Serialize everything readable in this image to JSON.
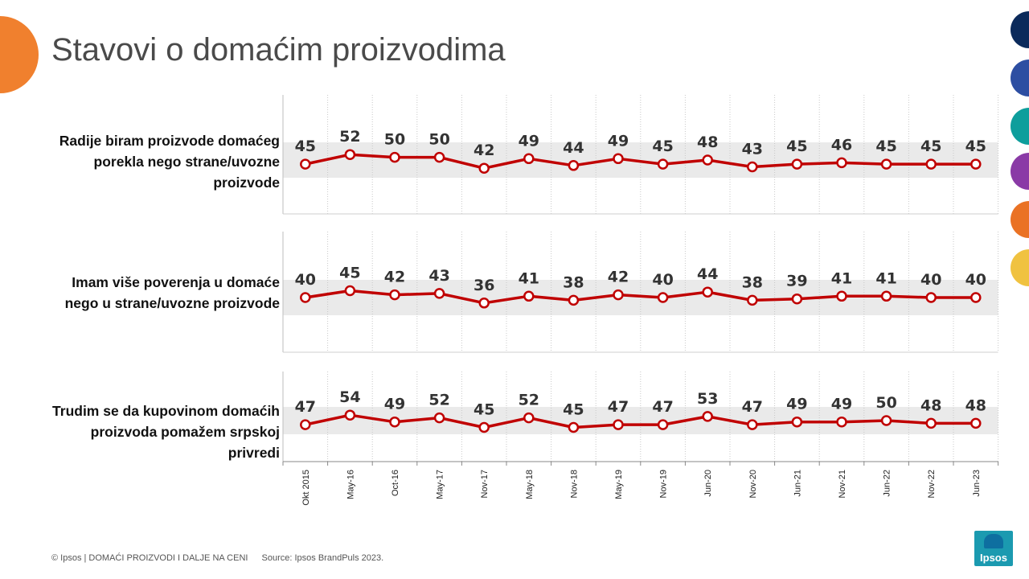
{
  "title": "Stavovi o domaćim proizvodima",
  "colors": {
    "line": "#c00000",
    "band": "#eaeaea",
    "deco_orange": "#f0802e",
    "side_dots": [
      "#0b2a5b",
      "#2d4ea2",
      "#0e9e9c",
      "#8a3aa6",
      "#ea7224",
      "#f0c240"
    ]
  },
  "chart_data": {
    "type": "line",
    "categories": [
      "Okt 2015",
      "May-16",
      "Oct-16",
      "May-17",
      "Nov-17",
      "May-18",
      "Nov-18",
      "May-19",
      "Nov-19",
      "Jun-20",
      "Nov-20",
      "Jun-21",
      "Nov-21",
      "Jun-22",
      "Nov-22",
      "Jun-23"
    ],
    "series": [
      {
        "name": "Radije biram proizvode domaćeg porekla nego strane/uvozne proizvode",
        "values": [
          45,
          52,
          50,
          50,
          42,
          49,
          44,
          49,
          45,
          48,
          43,
          45,
          46,
          45,
          45,
          45
        ]
      },
      {
        "name": "Imam više poverenja u domaće nego u strane/uvozne proizvode",
        "values": [
          40,
          45,
          42,
          43,
          36,
          41,
          38,
          42,
          40,
          44,
          38,
          39,
          41,
          41,
          40,
          40
        ]
      },
      {
        "name": "Trudim se da kupovinom domaćih proizvoda pomažem srpskoj privredi",
        "values": [
          47,
          54,
          49,
          52,
          45,
          52,
          45,
          47,
          47,
          53,
          47,
          49,
          49,
          50,
          48,
          48
        ]
      }
    ],
    "grid": true,
    "data_labels": true
  },
  "footer": {
    "copyright": "© Ipsos | DOMAĆI PROIZVODI I DALJE NA CENI",
    "source": "Source: Ipsos BrandPuls 2023."
  },
  "logo_text": "Ipsos"
}
